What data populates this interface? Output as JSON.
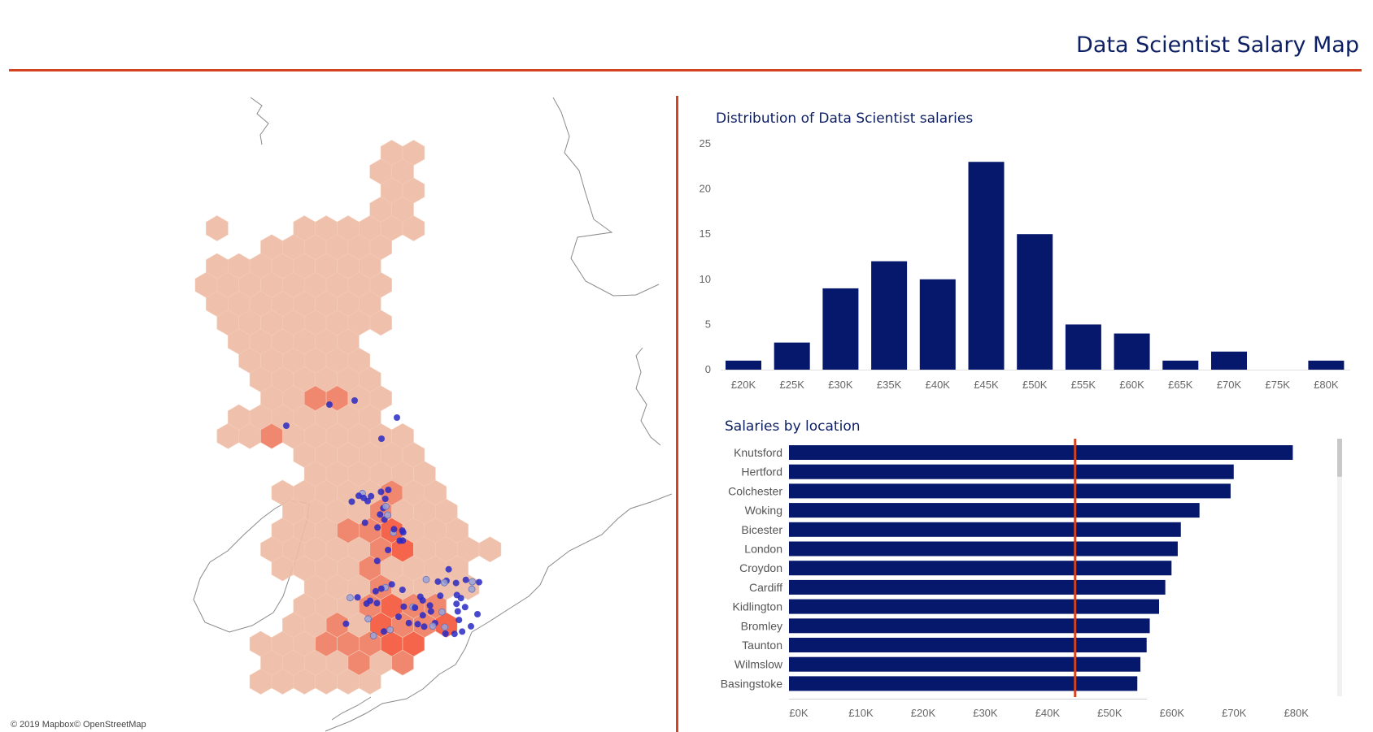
{
  "header": {
    "title": "Data Scientist Salary Map"
  },
  "map": {
    "attribution": "© 2019 Mapbox© OpenStreetMap",
    "colors": {
      "hex_base": "#eebba4",
      "hex_hot": "#ef7e63",
      "hex_hotter": "#f4593c",
      "dot": "#2929c4",
      "dot_light": "#9aa3d8",
      "coast": "#8a8a8a"
    }
  },
  "colors": {
    "bar": "#06186b",
    "accent": "#d3431f",
    "title": "#0d1f63"
  },
  "chart_data": [
    {
      "type": "bar",
      "title": "Distribution of Data Scientist salaries",
      "categories": [
        "£20K",
        "£25K",
        "£30K",
        "£35K",
        "£40K",
        "£45K",
        "£50K",
        "£55K",
        "£60K",
        "£65K",
        "£70K",
        "£75K",
        "£80K"
      ],
      "values": [
        1,
        3,
        9,
        12,
        10,
        23,
        15,
        5,
        4,
        1,
        2,
        0,
        1
      ],
      "y_ticks": [
        0,
        5,
        10,
        15,
        20,
        25
      ],
      "ylim": [
        0,
        25
      ],
      "xlabel": "",
      "ylabel": "",
      "grid": false
    },
    {
      "type": "bar",
      "orientation": "horizontal",
      "title": "Salaries by location",
      "categories": [
        "Knutsford",
        "Hertford",
        "Colchester",
        "Woking",
        "Bicester",
        "London",
        "Croydon",
        "Cardiff",
        "Kidlington",
        "Bromley",
        "Taunton",
        "Wilmslow",
        "Basingstoke"
      ],
      "values": [
        81000,
        71500,
        71000,
        66000,
        63000,
        62500,
        61500,
        60500,
        59500,
        58000,
        57500,
        56500,
        56000
      ],
      "x_ticks": [
        0,
        10000,
        20000,
        30000,
        40000,
        50000,
        60000,
        70000,
        80000
      ],
      "x_tick_labels": [
        "£0K",
        "£10K",
        "£20K",
        "£30K",
        "£40K",
        "£50K",
        "£60K",
        "£70K",
        "£80K"
      ],
      "xlim": [
        0,
        85000
      ],
      "reference_line": 46000,
      "xlabel": "",
      "ylabel": "",
      "grid": false
    }
  ]
}
